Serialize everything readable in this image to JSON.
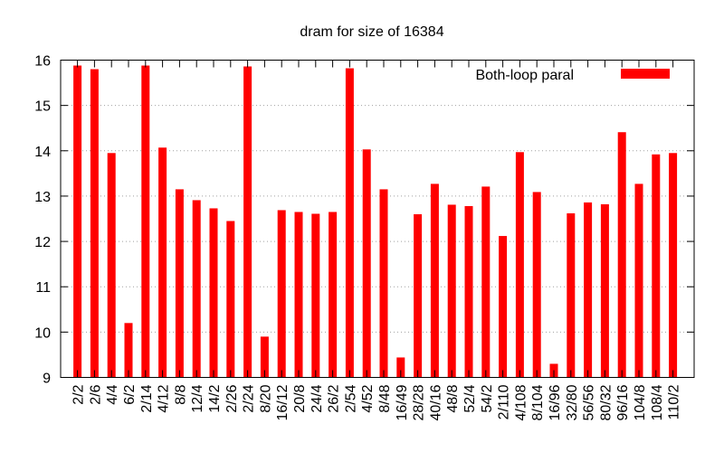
{
  "chart_data": {
    "type": "bar",
    "title": "dram for size of 16384",
    "xlabel": "",
    "ylabel": "",
    "ylim": [
      9,
      16
    ],
    "yticks": [
      9,
      10,
      11,
      12,
      13,
      14,
      15,
      16
    ],
    "grid": true,
    "legend_position": "top-right",
    "categories": [
      "2/2",
      "2/6",
      "4/4",
      "6/2",
      "2/14",
      "4/12",
      "8/8",
      "12/4",
      "14/2",
      "2/26",
      "2/24",
      "8/20",
      "16/12",
      "20/8",
      "24/4",
      "26/2",
      "2/54",
      "4/52",
      "8/48",
      "16/49",
      "28/28",
      "40/16",
      "48/8",
      "52/4",
      "54/2",
      "2/110",
      "4/108",
      "8/104",
      "16/96",
      "32/80",
      "56/56",
      "80/32",
      "96/16",
      "104/8",
      "108/4",
      "110/2"
    ],
    "series": [
      {
        "name": "Both-loop paral",
        "color": "#ff0000",
        "values": [
          15.88,
          15.8,
          13.95,
          10.2,
          15.88,
          14.07,
          13.15,
          12.91,
          12.73,
          12.45,
          15.86,
          9.9,
          12.69,
          12.65,
          12.61,
          12.65,
          15.82,
          14.03,
          13.15,
          9.44,
          12.6,
          13.27,
          12.81,
          12.78,
          13.21,
          12.12,
          13.97,
          13.09,
          9.3,
          12.62,
          12.86,
          12.82,
          14.41,
          13.27,
          13.92,
          13.95
        ]
      }
    ]
  }
}
